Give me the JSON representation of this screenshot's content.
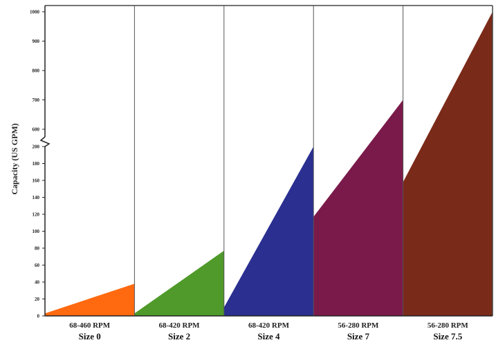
{
  "chart_data": {
    "type": "area",
    "ylabel": "Capacity (US GPM)",
    "xlabel": "",
    "grid": false,
    "y_axis_break": "between 200 and 600",
    "y_ticks_lower": [
      0,
      20,
      40,
      60,
      80,
      100,
      120,
      140,
      160,
      180,
      200
    ],
    "y_ticks_upper": [
      600,
      700,
      800,
      900,
      1000
    ],
    "panels": [
      {
        "rpm": "68-460 RPM",
        "size": "Size 0",
        "capacity_start": 3,
        "capacity_end": 38,
        "color": "#ff6a10"
      },
      {
        "rpm": "68-420 RPM",
        "size": "Size 2",
        "capacity_start": 3,
        "capacity_end": 77,
        "color": "#4f9a2a"
      },
      {
        "rpm": "68-420 RPM",
        "size": "Size 4",
        "capacity_start": 10,
        "capacity_end": 200,
        "color": "#2a2f90"
      },
      {
        "rpm": "56-280 RPM",
        "size": "Size 7",
        "capacity_start": 117,
        "capacity_end": 700,
        "color": "#7a1a4a"
      },
      {
        "rpm": "56-280 RPM",
        "size": "Size 7.5",
        "capacity_start": 158,
        "capacity_end": 1000,
        "color": "#7a2a18"
      }
    ]
  }
}
